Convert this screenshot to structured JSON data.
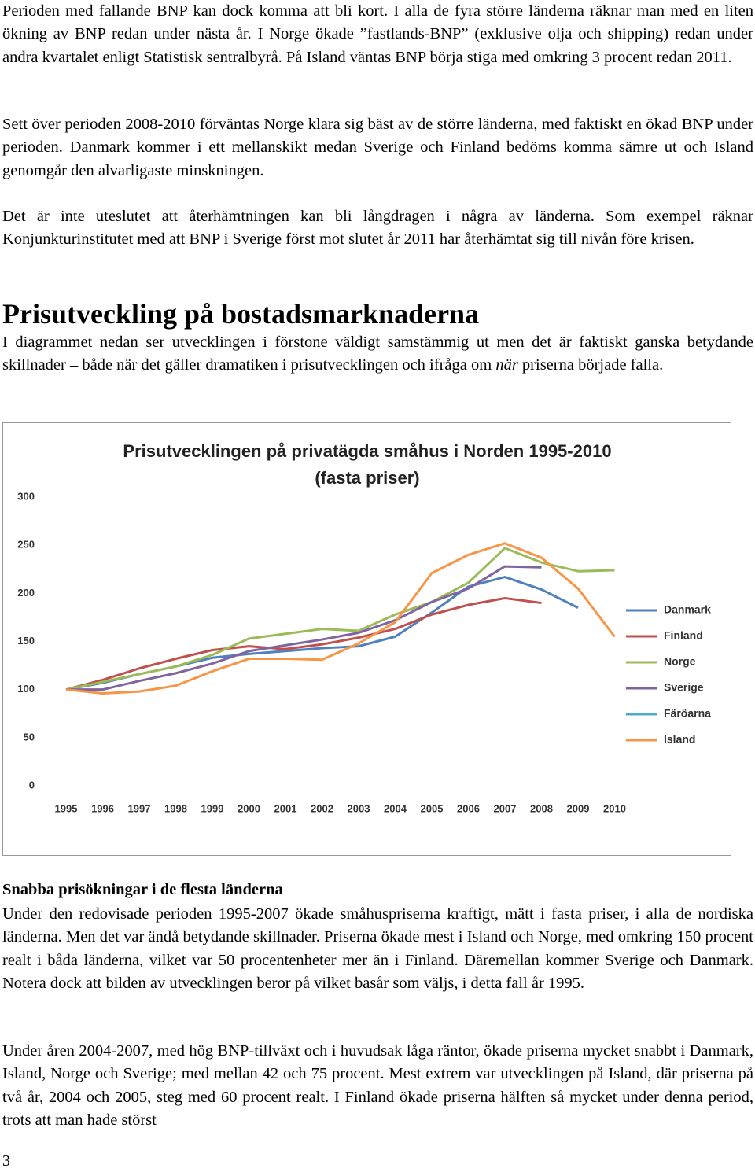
{
  "paragraphs": [
    "Perioden med fallande BNP kan dock komma att bli kort. I alla de fyra större länderna räknar man med en liten ökning av BNP redan under nästa år. I Norge ökade ”fastlands-BNP” (exklusive olja och shipping) redan under andra kvartalet enligt Statistisk sentralbyrå. På Island väntas BNP börja stiga med omkring 3 procent redan 2011.",
    "Sett över perioden 2008-2010 förväntas Norge klara sig bäst av de större länderna, med faktiskt en ökad BNP under perioden. Danmark kommer i ett mellanskikt medan Sverige och Finland bedöms komma sämre ut och Island genomgår den alvarligaste minskningen.",
    "Det är inte uteslutet att återhämtningen kan bli långdragen i några av länderna. Som exempel räknar Konjunkturinstitutet med att BNP i Sverige först mot slutet år 2011 har återhämtat sig till nivån före krisen."
  ],
  "section1": {
    "heading": "Prisutveckling på bostadsmarknaderna",
    "intro": [
      "I diagrammet nedan ser utvecklingen i förstone väldigt samstämmig ut men det är faktiskt ganska betydande skillnader – både när det gäller dramatiken i prisutvecklingen och ifråga om ",
      "när",
      " priserna började falla."
    ]
  },
  "chart_data": {
    "type": "line",
    "title": "Prisutvecklingen på privatägda småhus i Norden 1995-2010",
    "subtitle": "(fasta priser)",
    "categories": [
      "1995",
      "1996",
      "1997",
      "1998",
      "1999",
      "2000",
      "2001",
      "2002",
      "2003",
      "2004",
      "2005",
      "2006",
      "2007",
      "2008",
      "2009",
      "2010"
    ],
    "ylim": [
      0,
      300
    ],
    "yticks": [
      0,
      50,
      100,
      150,
      200,
      250,
      300
    ],
    "grid": false,
    "legend": "right",
    "series": [
      {
        "name": "Danmark",
        "color": "#4f81bd",
        "values": [
          100,
          107,
          116,
          124,
          133,
          137,
          140,
          143,
          145,
          155,
          180,
          207,
          217,
          204,
          185,
          null
        ]
      },
      {
        "name": "Finland",
        "color": "#c0504d",
        "values": [
          100,
          110,
          122,
          132,
          141,
          145,
          142,
          147,
          154,
          163,
          178,
          188,
          195,
          190,
          null,
          null
        ]
      },
      {
        "name": "Norge",
        "color": "#9bbb59",
        "values": [
          100,
          108,
          116,
          124,
          136,
          153,
          158,
          163,
          161,
          178,
          191,
          211,
          247,
          232,
          223,
          224
        ]
      },
      {
        "name": "Sverige",
        "color": "#8064a2",
        "values": [
          100,
          100,
          109,
          117,
          127,
          140,
          146,
          152,
          159,
          172,
          191,
          205,
          228,
          227,
          null,
          null
        ]
      },
      {
        "name": "Färöarna",
        "color": "#4bacc6",
        "values": [
          null,
          null,
          null,
          null,
          null,
          null,
          null,
          null,
          null,
          null,
          null,
          null,
          null,
          null,
          null,
          null
        ]
      },
      {
        "name": "Island",
        "color": "#f79646",
        "values": [
          100,
          96,
          98,
          104,
          119,
          132,
          132,
          131,
          148,
          170,
          221,
          240,
          252,
          237,
          205,
          155
        ]
      }
    ]
  },
  "section2": {
    "heading": "Snabba prisökningar i de flesta länderna",
    "paragraphs": [
      "Under den redovisade perioden 1995-2007 ökade småhuspriserna kraftigt, mätt i fasta priser, i alla de nordiska länderna. Men det var ändå betydande skillnader. Priserna ökade mest i Island och Norge, med omkring 150 procent realt i båda länderna, vilket var 50 procentenheter mer än i Finland. Däremellan kommer Sverige och Danmark. Notera dock att bilden av utvecklingen beror på vilket basår som väljs, i detta fall år 1995.",
      "Under åren 2004-2007, med hög BNP-tillväxt och i huvudsak låga räntor, ökade priserna mycket snabbt i Danmark, Island, Norge och Sverige; med mellan 42 och 75 procent. Mest extrem var utvecklingen på Island, där priserna på två år, 2004 och 2005, steg med 60 procent realt. I Finland ökade priserna hälften så mycket under denna period, trots att man hade störst"
    ]
  },
  "page_number": "3"
}
